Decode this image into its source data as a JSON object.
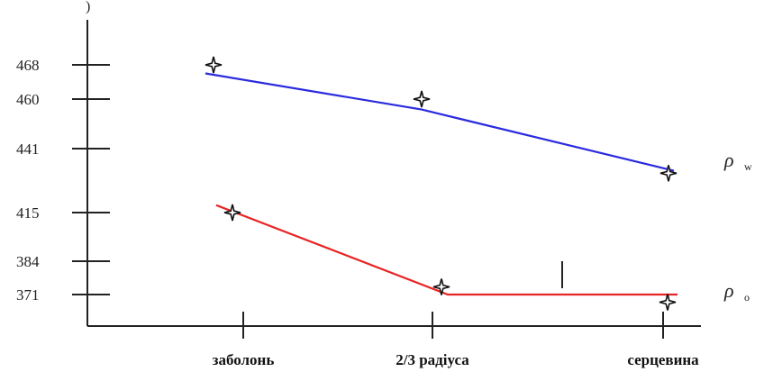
{
  "chart_data": {
    "type": "line",
    "corner_label": ")",
    "categories": [
      "заболонь",
      "2/3 радіуса",
      "серцевина"
    ],
    "y_ticks": [
      371,
      384,
      415,
      441,
      460,
      468
    ],
    "y_tick_labels": [
      "371",
      "384",
      "415",
      "441",
      "460",
      "468"
    ],
    "series": [
      {
        "label_symbol": "ρ",
        "label_subscript": "w",
        "color": "#2a2adf",
        "line_values": [
          466,
          456,
          432
        ],
        "marker_values": [
          468,
          460,
          431
        ]
      },
      {
        "label_symbol": "ρ",
        "label_subscript": "o",
        "color": "#e82424",
        "line_values": [
          418,
          371,
          371
        ],
        "marker_values": [
          415,
          374,
          368
        ]
      }
    ],
    "grid": false,
    "legend": "none"
  }
}
